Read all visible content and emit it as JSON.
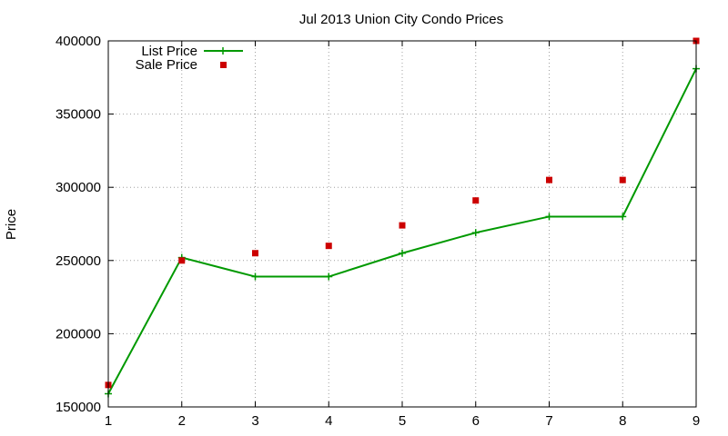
{
  "chart_data": {
    "type": "line",
    "title": "Jul 2013 Union City Condo Prices",
    "xlabel": "",
    "ylabel": "Price",
    "xlim": [
      1,
      9
    ],
    "ylim": [
      150000,
      400000
    ],
    "x_ticks": [
      1,
      2,
      3,
      4,
      5,
      6,
      7,
      8,
      9
    ],
    "y_ticks": [
      150000,
      200000,
      250000,
      300000,
      350000,
      400000
    ],
    "grid": true,
    "legend_position": "top-left",
    "series": [
      {
        "name": "List Price",
        "style": "lines+points",
        "color": "#009900",
        "x": [
          1,
          2,
          3,
          4,
          5,
          6,
          7,
          8,
          9
        ],
        "values": [
          159000,
          252000,
          239000,
          239000,
          255000,
          269000,
          280000,
          280000,
          381000
        ]
      },
      {
        "name": "Sale Price",
        "style": "points",
        "color": "#cc0000",
        "x": [
          1,
          2,
          3,
          4,
          5,
          6,
          7,
          8,
          9
        ],
        "values": [
          165000,
          250000,
          255000,
          260000,
          274000,
          291000,
          305000,
          305000,
          400000
        ]
      }
    ]
  }
}
